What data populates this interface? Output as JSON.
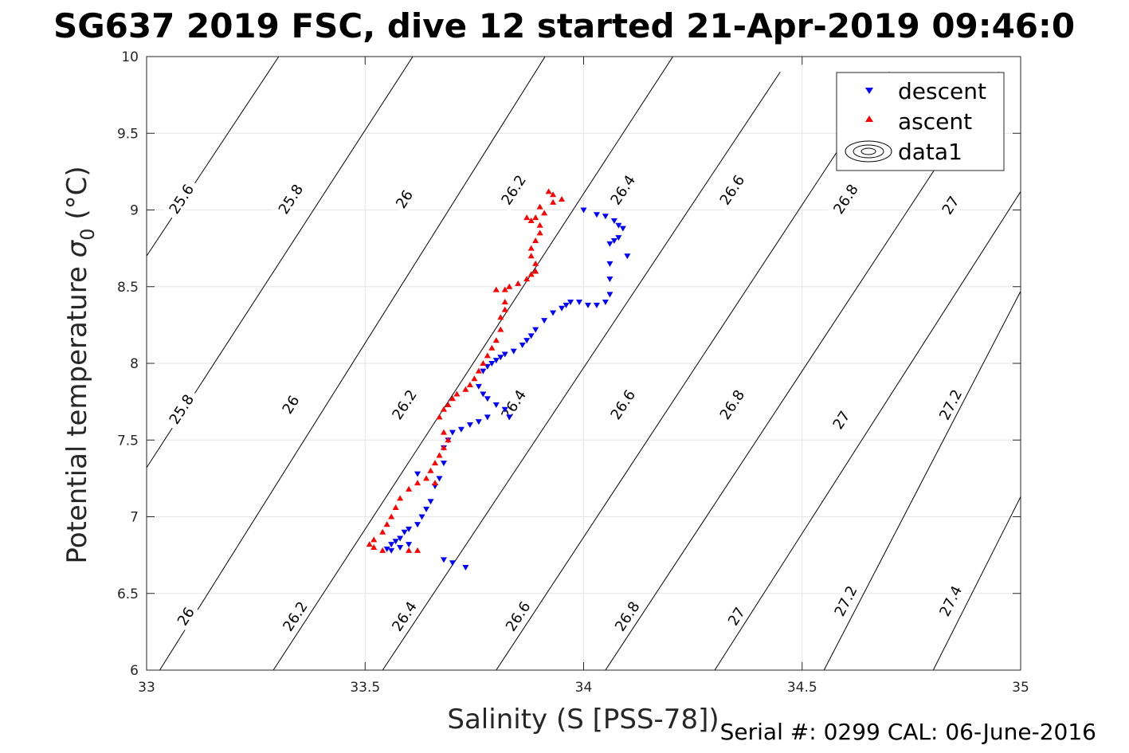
{
  "title": "SG637 2019 FSC, dive 12 started 21-Apr-2019 09:46:0",
  "footer": "Serial #: 0299 CAL: 06-June-2016",
  "chart_data": {
    "type": "scatter",
    "xlabel": "Salinity (S [PSS-78])",
    "ylabel_main": "Potential temperature ",
    "ylabel_sigma": "σ",
    "ylabel_sub": "0",
    "ylabel_unit": " (°C)",
    "xlim": [
      33,
      35
    ],
    "ylim": [
      6,
      10
    ],
    "x_ticks": [
      33,
      33.5,
      34,
      34.5,
      35
    ],
    "x_tick_labels": [
      "33",
      "33.5",
      "34",
      "34.5",
      "35"
    ],
    "y_ticks": [
      6,
      6.5,
      7,
      7.5,
      8,
      8.5,
      9,
      9.5,
      10
    ],
    "y_tick_labels": [
      "6",
      "6.5",
      "7",
      "7.5",
      "8",
      "8.5",
      "9",
      "9.5",
      "10"
    ],
    "grid": true,
    "legend_position": "top-right",
    "legend": [
      {
        "label": "descent",
        "marker": "triangle-down",
        "color": "#0000ff"
      },
      {
        "label": "ascent",
        "marker": "triangle-up",
        "color": "#ff0000"
      },
      {
        "label": "data1",
        "marker": "contour",
        "color": "#000000"
      }
    ],
    "contours": [
      {
        "level": 25.6,
        "points": [
          [
            33.0,
            8.7
          ],
          [
            33.5,
            10.85
          ]
        ],
        "labels": [
          {
            "x": 33.08,
            "y": 9.07,
            "text": "25.6"
          }
        ]
      },
      {
        "level": 25.8,
        "points": [
          [
            33.0,
            7.32
          ],
          [
            33.75,
            10.62
          ]
        ],
        "labels": [
          {
            "x": 33.08,
            "y": 7.7,
            "text": "25.8"
          },
          {
            "x": 33.33,
            "y": 9.07,
            "text": "25.8"
          }
        ]
      },
      {
        "level": 26.0,
        "points": [
          [
            33.03,
            6.0
          ],
          [
            34.0,
            10.4
          ]
        ],
        "labels": [
          {
            "x": 33.09,
            "y": 6.35,
            "text": "26"
          },
          {
            "x": 33.33,
            "y": 7.73,
            "text": "26"
          },
          {
            "x": 33.59,
            "y": 9.07,
            "text": "26"
          }
        ]
      },
      {
        "level": 26.2,
        "points": [
          [
            33.29,
            6.0
          ],
          [
            34.25,
            10.2
          ]
        ],
        "labels": [
          {
            "x": 33.34,
            "y": 6.35,
            "text": "26.2"
          },
          {
            "x": 33.59,
            "y": 7.73,
            "text": "26.2"
          },
          {
            "x": 33.84,
            "y": 9.13,
            "text": "26.2"
          }
        ]
      },
      {
        "level": 26.4,
        "points": [
          [
            33.54,
            6.0
          ],
          [
            34.45,
            9.9
          ]
        ],
        "labels": [
          {
            "x": 33.59,
            "y": 6.35,
            "text": "26.4"
          },
          {
            "x": 33.84,
            "y": 7.73,
            "text": "26.4"
          },
          {
            "x": 34.09,
            "y": 9.13,
            "text": "26.4"
          }
        ]
      },
      {
        "level": 26.6,
        "points": [
          [
            33.8,
            6.0
          ],
          [
            34.7,
            9.9
          ]
        ],
        "labels": [
          {
            "x": 33.85,
            "y": 6.35,
            "text": "26.6"
          },
          {
            "x": 34.09,
            "y": 7.73,
            "text": "26.6"
          },
          {
            "x": 34.34,
            "y": 9.13,
            "text": "26.6"
          }
        ]
      },
      {
        "level": 26.8,
        "points": [
          [
            34.05,
            6.0
          ],
          [
            34.95,
            9.9
          ]
        ],
        "labels": [
          {
            "x": 34.1,
            "y": 6.35,
            "text": "26.8"
          },
          {
            "x": 34.34,
            "y": 7.73,
            "text": "26.8"
          },
          {
            "x": 34.6,
            "y": 9.07,
            "text": "26.8"
          }
        ]
      },
      {
        "level": 27.0,
        "points": [
          [
            34.3,
            6.0
          ],
          [
            35.0,
            9.12
          ]
        ],
        "labels": [
          {
            "x": 34.35,
            "y": 6.35,
            "text": "27"
          },
          {
            "x": 34.59,
            "y": 7.63,
            "text": "27"
          },
          {
            "x": 34.84,
            "y": 9.03,
            "text": "27"
          }
        ]
      },
      {
        "level": 27.2,
        "points": [
          [
            34.55,
            6.0
          ],
          [
            35.0,
            8.47
          ]
        ],
        "labels": [
          {
            "x": 34.6,
            "y": 6.45,
            "text": "27.2"
          },
          {
            "x": 34.84,
            "y": 7.73,
            "text": "27.2"
          }
        ]
      },
      {
        "level": 27.4,
        "points": [
          [
            34.8,
            6.0
          ],
          [
            35.0,
            7.13
          ]
        ],
        "labels": [
          {
            "x": 34.84,
            "y": 6.45,
            "text": "27.4"
          }
        ]
      }
    ],
    "series": [
      {
        "name": "descent",
        "marker": "triangle-down",
        "color": "#0000ff",
        "points": [
          [
            34.0,
            9.0
          ],
          [
            34.03,
            8.97
          ],
          [
            34.05,
            8.96
          ],
          [
            34.07,
            8.93
          ],
          [
            34.08,
            8.9
          ],
          [
            34.09,
            8.88
          ],
          [
            34.08,
            8.82
          ],
          [
            34.07,
            8.8
          ],
          [
            34.06,
            8.78
          ],
          [
            34.1,
            8.7
          ],
          [
            34.06,
            8.65
          ],
          [
            34.06,
            8.55
          ],
          [
            34.06,
            8.45
          ],
          [
            34.05,
            8.4
          ],
          [
            34.03,
            8.38
          ],
          [
            34.01,
            8.38
          ],
          [
            33.99,
            8.4
          ],
          [
            33.97,
            8.4
          ],
          [
            33.96,
            8.38
          ],
          [
            33.95,
            8.36
          ],
          [
            33.93,
            8.33
          ],
          [
            33.91,
            8.28
          ],
          [
            33.89,
            8.22
          ],
          [
            33.88,
            8.18
          ],
          [
            33.87,
            8.15
          ],
          [
            33.86,
            8.12
          ],
          [
            33.84,
            8.08
          ],
          [
            33.82,
            8.06
          ],
          [
            33.81,
            8.04
          ],
          [
            33.8,
            8.02
          ],
          [
            33.79,
            8.0
          ],
          [
            33.78,
            7.98
          ],
          [
            33.77,
            7.95
          ],
          [
            33.76,
            7.85
          ],
          [
            33.77,
            7.8
          ],
          [
            33.78,
            7.77
          ],
          [
            33.8,
            7.73
          ],
          [
            33.82,
            7.7
          ],
          [
            33.83,
            7.65
          ],
          [
            33.78,
            7.65
          ],
          [
            33.76,
            7.62
          ],
          [
            33.74,
            7.6
          ],
          [
            33.72,
            7.57
          ],
          [
            33.7,
            7.55
          ],
          [
            33.69,
            7.5
          ],
          [
            33.68,
            7.45
          ],
          [
            33.68,
            7.35
          ],
          [
            33.67,
            7.25
          ],
          [
            33.66,
            7.2
          ],
          [
            33.65,
            7.1
          ],
          [
            33.64,
            7.05
          ],
          [
            33.63,
            7.0
          ],
          [
            33.62,
            6.95
          ],
          [
            33.6,
            6.92
          ],
          [
            33.59,
            6.9
          ],
          [
            33.58,
            6.86
          ],
          [
            33.57,
            6.84
          ],
          [
            33.56,
            6.82
          ],
          [
            33.55,
            6.79
          ],
          [
            33.56,
            6.78
          ],
          [
            33.58,
            6.8
          ],
          [
            33.6,
            6.82
          ],
          [
            33.62,
            7.28
          ],
          [
            33.68,
            6.72
          ],
          [
            33.7,
            6.7
          ],
          [
            33.73,
            6.67
          ]
        ]
      },
      {
        "name": "ascent",
        "marker": "triangle-up",
        "color": "#ff0000",
        "points": [
          [
            33.92,
            9.12
          ],
          [
            33.93,
            9.1
          ],
          [
            33.95,
            9.07
          ],
          [
            33.93,
            9.05
          ],
          [
            33.9,
            9.02
          ],
          [
            33.91,
            8.98
          ],
          [
            33.89,
            8.95
          ],
          [
            33.88,
            8.93
          ],
          [
            33.87,
            8.95
          ],
          [
            33.9,
            8.9
          ],
          [
            33.9,
            8.85
          ],
          [
            33.89,
            8.8
          ],
          [
            33.88,
            8.75
          ],
          [
            33.88,
            8.7
          ],
          [
            33.89,
            8.65
          ],
          [
            33.89,
            8.6
          ],
          [
            33.88,
            8.58
          ],
          [
            33.87,
            8.55
          ],
          [
            33.85,
            8.52
          ],
          [
            33.83,
            8.5
          ],
          [
            33.82,
            8.48
          ],
          [
            33.8,
            8.48
          ],
          [
            33.82,
            8.4
          ],
          [
            33.82,
            8.35
          ],
          [
            33.81,
            8.3
          ],
          [
            33.81,
            8.22
          ],
          [
            33.8,
            8.15
          ],
          [
            33.79,
            8.1
          ],
          [
            33.78,
            8.05
          ],
          [
            33.77,
            8.0
          ],
          [
            33.76,
            7.95
          ],
          [
            33.75,
            7.9
          ],
          [
            33.74,
            7.86
          ],
          [
            33.73,
            7.83
          ],
          [
            33.71,
            7.8
          ],
          [
            33.7,
            7.77
          ],
          [
            33.69,
            7.73
          ],
          [
            33.68,
            7.7
          ],
          [
            33.67,
            7.65
          ],
          [
            33.68,
            7.55
          ],
          [
            33.69,
            7.5
          ],
          [
            33.68,
            7.45
          ],
          [
            33.67,
            7.4
          ],
          [
            33.66,
            7.35
          ],
          [
            33.65,
            7.3
          ],
          [
            33.64,
            7.25
          ],
          [
            33.62,
            7.22
          ],
          [
            33.6,
            7.18
          ],
          [
            33.58,
            7.12
          ],
          [
            33.57,
            7.06
          ],
          [
            33.56,
            7.0
          ],
          [
            33.55,
            6.95
          ],
          [
            33.54,
            6.9
          ],
          [
            33.52,
            6.85
          ],
          [
            33.51,
            6.82
          ],
          [
            33.52,
            6.8
          ],
          [
            33.54,
            6.78
          ],
          [
            33.6,
            6.78
          ],
          [
            33.62,
            6.78
          ],
          [
            33.66,
            7.22
          ]
        ]
      }
    ]
  }
}
